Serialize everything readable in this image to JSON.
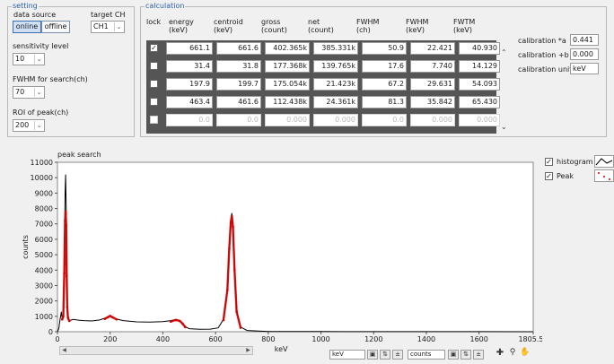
{
  "setting": {
    "legend": "setting",
    "data_source_label": "data source",
    "target_ch_label": "target CH",
    "online": "online",
    "offline": "offline",
    "target_ch_value": "CH1",
    "sensitivity_label": "sensitivity level",
    "sensitivity_value": "10",
    "fwhm_search_label": "FWHM for search(ch)",
    "fwhm_search_value": "70",
    "roi_label": "ROI of peak(ch)",
    "roi_value": "200"
  },
  "calculation": {
    "legend": "calculation",
    "headers": {
      "lock": "lock",
      "energy": "energy\n(keV)",
      "centroid": "centroid\n(keV)",
      "gross": "gross\n(count)",
      "net": "net\n(count)",
      "fwhm_ch": "FWHM\n(ch)",
      "fwhm_kev": "FWHM\n(keV)",
      "fwtm": "FWTM\n(keV)"
    },
    "rows": [
      {
        "locked": true,
        "energy": "661.1",
        "centroid": "661.6",
        "gross": "402.365k",
        "net": "385.331k",
        "fwhm_ch": "50.9",
        "fwhm_kev": "22.421",
        "fwtm": "40.930"
      },
      {
        "locked": false,
        "energy": "31.4",
        "centroid": "31.8",
        "gross": "177.368k",
        "net": "139.765k",
        "fwhm_ch": "17.6",
        "fwhm_kev": "7.740",
        "fwtm": "14.129"
      },
      {
        "locked": false,
        "energy": "197.9",
        "centroid": "199.7",
        "gross": "175.054k",
        "net": "21.423k",
        "fwhm_ch": "67.2",
        "fwhm_kev": "29.631",
        "fwtm": "54.093"
      },
      {
        "locked": false,
        "energy": "463.4",
        "centroid": "461.6",
        "gross": "112.438k",
        "net": "24.361k",
        "fwhm_ch": "81.3",
        "fwhm_kev": "35.842",
        "fwtm": "65.430"
      },
      {
        "locked": false,
        "energy": "0.0",
        "centroid": "0.0",
        "gross": "0.000",
        "net": "0.000",
        "fwhm_ch": "0.0",
        "fwhm_kev": "0.000",
        "fwtm": "0.000"
      }
    ],
    "calibration_a_label": "calibration *a",
    "calibration_a_value": "0.441",
    "calibration_b_label": "calibration +b",
    "calibration_b_value": "0.000",
    "calibration_unit_label": "calibration unit",
    "calibration_unit_value": "keV"
  },
  "plot": {
    "x_unit_field": "keV",
    "y_unit_field": "counts",
    "legend_histogram": "histogram",
    "legend_peak": "Peak",
    "histogram_color": "#000000",
    "peak_color": "#d40000"
  },
  "chart_data": {
    "type": "line",
    "title": "peak search",
    "xlabel": "keV",
    "ylabel": "counts",
    "xlim": [
      0,
      1805.54
    ],
    "ylim": [
      0,
      11000
    ],
    "x_ticks": [
      "0",
      "200",
      "400",
      "600",
      "800",
      "1000",
      "1200",
      "1400",
      "1600",
      "1805.54"
    ],
    "y_ticks": [
      "0",
      "1000",
      "2000",
      "3000",
      "4000",
      "5000",
      "6000",
      "7000",
      "8000",
      "9000",
      "10000",
      "11000"
    ],
    "series": [
      {
        "name": "histogram",
        "x": [
          0,
          5,
          10,
          15,
          18,
          22,
          26,
          29,
          31,
          33,
          35,
          37,
          40,
          45,
          50,
          60,
          80,
          100,
          130,
          160,
          180,
          190,
          200,
          210,
          225,
          250,
          300,
          350,
          400,
          430,
          450,
          465,
          475,
          485,
          500,
          540,
          580,
          610,
          630,
          645,
          652,
          658,
          662,
          666,
          672,
          680,
          695,
          720,
          800,
          1000,
          1200,
          1400,
          1600,
          1805
        ],
        "y": [
          0,
          200,
          800,
          1300,
          800,
          1000,
          4000,
          9000,
          10200,
          8200,
          4000,
          1800,
          900,
          700,
          750,
          800,
          750,
          720,
          700,
          760,
          880,
          980,
          1060,
          960,
          820,
          720,
          640,
          620,
          650,
          720,
          800,
          720,
          550,
          330,
          200,
          160,
          170,
          250,
          800,
          2800,
          5600,
          7300,
          7700,
          7000,
          4200,
          1400,
          300,
          80,
          20,
          10,
          5,
          5,
          3,
          0
        ]
      },
      {
        "name": "Peak",
        "x": [
          18,
          22,
          26,
          29,
          31,
          33,
          35,
          37,
          40,
          45,
          180,
          190,
          200,
          210,
          225,
          430,
          450,
          465,
          475,
          485,
          630,
          645,
          652,
          658,
          662,
          666,
          672,
          680,
          695
        ],
        "y": [
          800,
          1000,
          3800,
          7200,
          7800,
          6900,
          3600,
          1600,
          900,
          700,
          830,
          930,
          1020,
          930,
          800,
          660,
          760,
          690,
          520,
          300,
          750,
          2700,
          5400,
          7100,
          7500,
          6800,
          4000,
          1300,
          260
        ]
      }
    ],
    "grid": false,
    "legend_position": "right"
  }
}
